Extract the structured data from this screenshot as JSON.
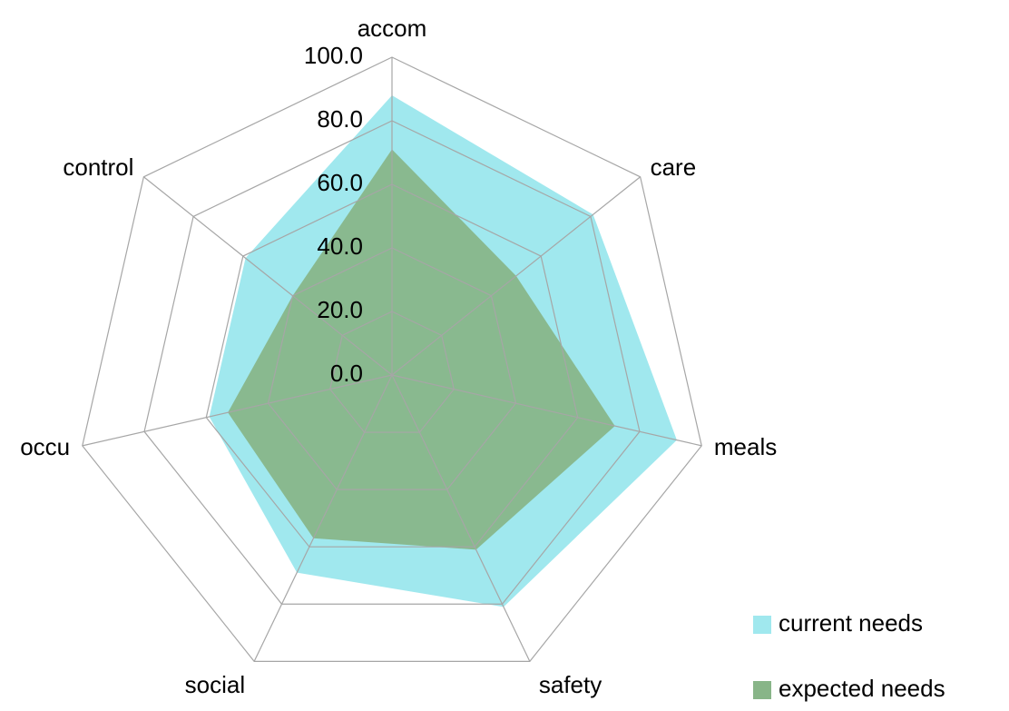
{
  "chart_data": {
    "type": "radar",
    "categories": [
      "accom",
      "care",
      "meals",
      "safety",
      "social",
      "occu",
      "control"
    ],
    "series": [
      {
        "name": "current needs",
        "color": "#a0e8ee",
        "values": [
          88,
          81,
          92,
          81,
          69,
          59,
          59
        ]
      },
      {
        "name": "expected needs",
        "color": "#88b588",
        "values": [
          71,
          50,
          72,
          61,
          57,
          53,
          40
        ]
      }
    ],
    "ylim": [
      0,
      100
    ],
    "yticks": [
      {
        "value": 0,
        "label": "0.0"
      },
      {
        "value": 20,
        "label": "20.0"
      },
      {
        "value": 40,
        "label": "40.0"
      },
      {
        "value": 60,
        "label": "60.0"
      },
      {
        "value": 80,
        "label": "80.0"
      },
      {
        "value": 100,
        "label": "100.0"
      }
    ],
    "grid": true,
    "legend": "bottom-right"
  }
}
